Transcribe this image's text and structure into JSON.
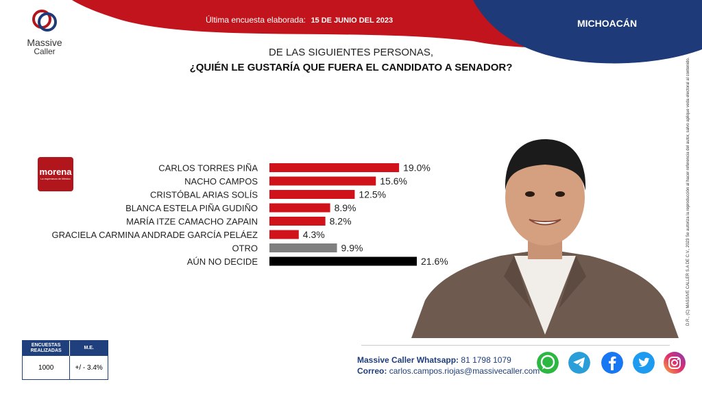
{
  "header": {
    "brand_line1": "Massive",
    "brand_line2": "Caller",
    "last_survey_label": "Última encuesta elaborada:",
    "last_survey_date": "15 DE JUNIO DEL 2023",
    "region": "MICHOACÁN",
    "colors": {
      "red": "#c2141c",
      "navy": "#1e3a78"
    }
  },
  "question": {
    "line1": "DE LAS SIGUIENTES PERSONAS,",
    "line2": "¿QUIÉN LE GUSTARÍA QUE FUERA EL CANDIDATO  A SENADOR?"
  },
  "party_logo": {
    "name": "morena",
    "tagline": "La esperanza de México"
  },
  "chart_data": {
    "type": "bar",
    "orientation": "horizontal",
    "categories": [
      "CARLOS TORRES PIÑA",
      "NACHO CAMPOS",
      "CRISTÓBAL ARIAS SOLÍS",
      "BLANCA ESTELA PIÑA GUDIÑO",
      "MARÍA ITZE CAMACHO ZAPAIN",
      "GRACIELA CARMINA ANDRADE GARCÍA PELÁEZ",
      "OTRO",
      "AÚN NO DECIDE"
    ],
    "values": [
      19.0,
      15.6,
      12.5,
      8.9,
      8.2,
      4.3,
      9.9,
      21.6
    ],
    "value_labels": [
      "19.0%",
      "15.6%",
      "12.5%",
      "8.9%",
      "8.2%",
      "4.3%",
      "9.9%",
      "21.6%"
    ],
    "colors": [
      "#d0121a",
      "#d0121a",
      "#d0121a",
      "#d0121a",
      "#d0121a",
      "#d0121a",
      "#7f7f7f",
      "#000000"
    ],
    "xlim": [
      0,
      25
    ],
    "grid": false,
    "legend": "none"
  },
  "legal_text": "D.R., (C) MASSIVE CALLER S.A DE C.V., 2023  Se autoriza la reproducción al hacer referencia del autor, salvo aplique veda electoral al contenido.",
  "stats_table": {
    "col1_header": "ENCUESTAS REALIZADAS",
    "col2_header": "M.E.",
    "col1_value": "1000",
    "col2_value": "+/ - 3.4%"
  },
  "contact": {
    "whatsapp_label": "Massive Caller Whatsapp:",
    "whatsapp_number": "81 1798 1079",
    "email_label": "Correo:",
    "email": "carlos.campos.riojas@massivecaller.com"
  },
  "social_icons": [
    "whatsapp-icon",
    "telegram-icon",
    "facebook-icon",
    "twitter-icon",
    "instagram-icon"
  ]
}
